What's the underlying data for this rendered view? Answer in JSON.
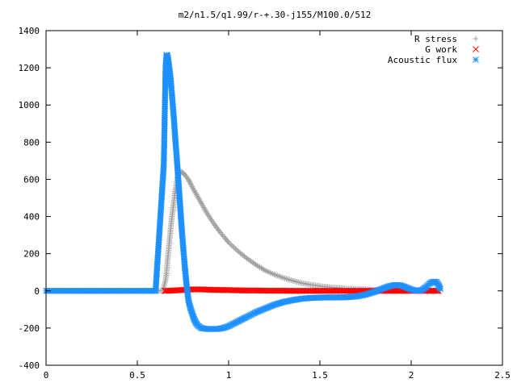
{
  "chart_data": {
    "type": "scatter",
    "title": "m2/n1.5/q1.99/r-+.30-j155/M100.0/512",
    "xlabel": "",
    "ylabel": "",
    "xlim": [
      0,
      2.5
    ],
    "ylim": [
      -400,
      1400
    ],
    "x_ticks": [
      "0",
      "0.5",
      "1",
      "1.5",
      "2",
      "2.5"
    ],
    "y_ticks": [
      "-400",
      "-200",
      "0",
      "200",
      "400",
      "600",
      "800",
      "1000",
      "1200",
      "1400"
    ],
    "grid": false,
    "legend_position": "top-right",
    "series": [
      {
        "name": "R stress",
        "marker": "plus",
        "color": "#a0a0a0",
        "points": [
          [
            0.0,
            0
          ],
          [
            0.1,
            0
          ],
          [
            0.2,
            0
          ],
          [
            0.3,
            0
          ],
          [
            0.4,
            0
          ],
          [
            0.5,
            0
          ],
          [
            0.6,
            0
          ],
          [
            0.64,
            0
          ],
          [
            0.655,
            60
          ],
          [
            0.66,
            100
          ],
          [
            0.665,
            160
          ],
          [
            0.67,
            210
          ],
          [
            0.675,
            260
          ],
          [
            0.68,
            310
          ],
          [
            0.685,
            360
          ],
          [
            0.69,
            400
          ],
          [
            0.695,
            440
          ],
          [
            0.7,
            480
          ],
          [
            0.705,
            520
          ],
          [
            0.71,
            550
          ],
          [
            0.715,
            580
          ],
          [
            0.72,
            610
          ],
          [
            0.725,
            625
          ],
          [
            0.73,
            635
          ],
          [
            0.74,
            640
          ],
          [
            0.75,
            635
          ],
          [
            0.76,
            625
          ],
          [
            0.77,
            612
          ],
          [
            0.78,
            598
          ],
          [
            0.79,
            580
          ],
          [
            0.8,
            560
          ],
          [
            0.82,
            525
          ],
          [
            0.84,
            490
          ],
          [
            0.86,
            455
          ],
          [
            0.88,
            420
          ],
          [
            0.9,
            390
          ],
          [
            0.92,
            360
          ],
          [
            0.95,
            320
          ],
          [
            0.98,
            285
          ],
          [
            1.0,
            260
          ],
          [
            1.05,
            215
          ],
          [
            1.1,
            175
          ],
          [
            1.15,
            140
          ],
          [
            1.2,
            110
          ],
          [
            1.25,
            88
          ],
          [
            1.3,
            70
          ],
          [
            1.35,
            55
          ],
          [
            1.4,
            42
          ],
          [
            1.45,
            33
          ],
          [
            1.5,
            26
          ],
          [
            1.55,
            20
          ],
          [
            1.6,
            16
          ],
          [
            1.65,
            12
          ],
          [
            1.7,
            10
          ],
          [
            1.75,
            8
          ],
          [
            1.8,
            6
          ],
          [
            1.85,
            5
          ],
          [
            1.9,
            4
          ],
          [
            1.95,
            3
          ],
          [
            2.0,
            2
          ],
          [
            2.05,
            2
          ],
          [
            2.1,
            1
          ],
          [
            2.15,
            1
          ]
        ]
      },
      {
        "name": "G work",
        "marker": "cross",
        "color": "#ff0000",
        "points": [
          [
            0.65,
            0
          ],
          [
            0.7,
            2
          ],
          [
            0.75,
            5
          ],
          [
            0.8,
            8
          ],
          [
            0.85,
            8
          ],
          [
            0.9,
            6
          ],
          [
            0.95,
            5
          ],
          [
            1.0,
            4
          ],
          [
            1.05,
            3
          ],
          [
            1.1,
            2
          ],
          [
            1.15,
            2
          ],
          [
            1.2,
            1
          ],
          [
            1.25,
            1
          ],
          [
            1.3,
            1
          ],
          [
            1.35,
            0
          ],
          [
            1.4,
            0
          ],
          [
            1.45,
            0
          ],
          [
            1.5,
            0
          ],
          [
            1.55,
            0
          ],
          [
            1.6,
            0
          ],
          [
            1.65,
            0
          ],
          [
            1.7,
            0
          ],
          [
            1.75,
            0
          ],
          [
            1.8,
            0
          ],
          [
            1.85,
            0
          ],
          [
            1.9,
            0
          ],
          [
            1.95,
            0
          ],
          [
            2.0,
            0
          ],
          [
            2.05,
            0
          ],
          [
            2.1,
            0
          ],
          [
            2.15,
            0
          ]
        ]
      },
      {
        "name": "Acoustic flux",
        "marker": "star",
        "color": "#1e90ff",
        "points": [
          [
            0.0,
            0
          ],
          [
            0.1,
            0
          ],
          [
            0.2,
            0
          ],
          [
            0.3,
            0
          ],
          [
            0.4,
            0
          ],
          [
            0.5,
            0
          ],
          [
            0.6,
            0
          ],
          [
            0.645,
            680
          ],
          [
            0.655,
            1210
          ],
          [
            0.66,
            1270
          ],
          [
            0.665,
            1265
          ],
          [
            0.67,
            1240
          ],
          [
            0.675,
            1200
          ],
          [
            0.68,
            1160
          ],
          [
            0.685,
            1110
          ],
          [
            0.69,
            1050
          ],
          [
            0.695,
            990
          ],
          [
            0.7,
            930
          ],
          [
            0.705,
            860
          ],
          [
            0.71,
            790
          ],
          [
            0.715,
            730
          ],
          [
            0.72,
            660
          ],
          [
            0.725,
            590
          ],
          [
            0.73,
            520
          ],
          [
            0.735,
            450
          ],
          [
            0.74,
            380
          ],
          [
            0.745,
            310
          ],
          [
            0.75,
            250
          ],
          [
            0.755,
            190
          ],
          [
            0.76,
            130
          ],
          [
            0.765,
            80
          ],
          [
            0.77,
            30
          ],
          [
            0.775,
            -10
          ],
          [
            0.78,
            -50
          ],
          [
            0.79,
            -90
          ],
          [
            0.8,
            -120
          ],
          [
            0.81,
            -150
          ],
          [
            0.82,
            -170
          ],
          [
            0.83,
            -185
          ],
          [
            0.85,
            -200
          ],
          [
            0.88,
            -205
          ],
          [
            0.91,
            -205
          ],
          [
            0.94,
            -205
          ],
          [
            0.97,
            -200
          ],
          [
            1.0,
            -190
          ],
          [
            1.03,
            -175
          ],
          [
            1.06,
            -160
          ],
          [
            1.1,
            -140
          ],
          [
            1.15,
            -115
          ],
          [
            1.2,
            -95
          ],
          [
            1.25,
            -75
          ],
          [
            1.3,
            -60
          ],
          [
            1.35,
            -50
          ],
          [
            1.4,
            -42
          ],
          [
            1.45,
            -38
          ],
          [
            1.5,
            -36
          ],
          [
            1.55,
            -35
          ],
          [
            1.6,
            -35
          ],
          [
            1.65,
            -34
          ],
          [
            1.7,
            -30
          ],
          [
            1.75,
            -20
          ],
          [
            1.8,
            -5
          ],
          [
            1.85,
            15
          ],
          [
            1.88,
            25
          ],
          [
            1.91,
            32
          ],
          [
            1.94,
            30
          ],
          [
            1.97,
            20
          ],
          [
            2.0,
            8
          ],
          [
            2.03,
            0
          ],
          [
            2.06,
            5
          ],
          [
            2.08,
            20
          ],
          [
            2.1,
            38
          ],
          [
            2.12,
            50
          ],
          [
            2.14,
            48
          ],
          [
            2.15,
            30
          ],
          [
            2.16,
            10
          ]
        ]
      }
    ]
  }
}
